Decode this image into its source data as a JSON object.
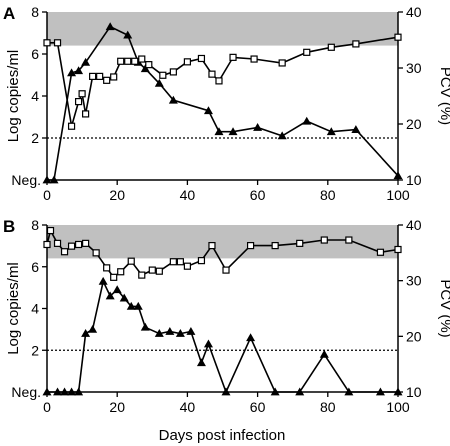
{
  "figure": {
    "shared_xlabel": "Days post infection"
  },
  "chart_data": [
    {
      "type": "line",
      "panel_label": "A",
      "xlim": [
        0,
        100
      ],
      "xticks": [
        0,
        20,
        40,
        60,
        80,
        100
      ],
      "left_axis": {
        "label": "Log copies/ml",
        "ylim": [
          0,
          8
        ],
        "ticks": [
          2,
          4,
          6,
          8
        ],
        "bottom_label": "Neg."
      },
      "right_axis": {
        "label": "PCV (%)",
        "ylim": [
          10,
          40
        ],
        "ticks": [
          10,
          20,
          30,
          40
        ]
      },
      "shaded_band": {
        "axis": "right",
        "range": [
          34,
          40
        ],
        "color": "#c0c0c0"
      },
      "threshold_line": {
        "axis": "left",
        "value": 2,
        "style": "dotted"
      },
      "series": [
        {
          "marker": "filled-triangle",
          "axis": "left",
          "x": [
            0,
            2,
            7,
            9,
            11,
            18,
            23,
            26,
            28,
            32,
            36,
            46,
            49,
            53,
            60,
            67,
            74,
            81,
            88,
            100
          ],
          "y": [
            0,
            0,
            5.1,
            5.2,
            5.6,
            7.3,
            6.9,
            5.6,
            5.3,
            4.6,
            3.8,
            3.3,
            2.3,
            2.3,
            2.5,
            2.1,
            2.8,
            2.3,
            2.4,
            0.2
          ]
        },
        {
          "marker": "open-square",
          "axis": "right",
          "x": [
            0,
            3,
            7,
            9,
            10,
            11,
            13,
            15,
            17,
            19,
            21,
            23,
            25,
            27,
            29,
            33,
            36,
            40,
            44,
            47,
            49,
            53,
            59,
            67,
            74,
            81,
            88,
            100
          ],
          "y": [
            34.5,
            34.5,
            19.6,
            24,
            25.4,
            21.8,
            28.5,
            28.5,
            27.8,
            28.4,
            31.2,
            31.2,
            31.2,
            31.6,
            30.6,
            28.7,
            29.3,
            31.1,
            31.7,
            28.9,
            27.7,
            31.9,
            31.6,
            30.9,
            32.8,
            33.7,
            34.3,
            35.5
          ]
        }
      ]
    },
    {
      "type": "line",
      "panel_label": "B",
      "xlim": [
        0,
        100
      ],
      "xticks": [
        0,
        20,
        40,
        60,
        80,
        100
      ],
      "left_axis": {
        "label": "Log copies/ml",
        "ylim": [
          0,
          8
        ],
        "ticks": [
          2,
          4,
          6,
          8
        ],
        "bottom_label": "Neg."
      },
      "right_axis": {
        "label": "PCV (%)",
        "ylim": [
          10,
          40
        ],
        "ticks": [
          10,
          20,
          30,
          40
        ]
      },
      "shaded_band": {
        "axis": "right",
        "range": [
          34,
          40
        ],
        "color": "#c0c0c0"
      },
      "threshold_line": {
        "axis": "left",
        "value": 2,
        "style": "dotted"
      },
      "series": [
        {
          "marker": "filled-triangle",
          "axis": "left",
          "x": [
            0,
            3,
            5,
            7,
            9,
            11,
            13,
            16,
            18,
            20,
            22,
            24,
            26,
            28,
            32,
            35,
            38,
            41,
            44,
            46,
            51,
            58,
            65,
            72,
            79,
            86,
            95,
            100
          ],
          "y": [
            0,
            0,
            0,
            0,
            0,
            2.8,
            3.0,
            5.3,
            4.6,
            4.9,
            4.5,
            4.1,
            4.1,
            3.1,
            2.8,
            2.9,
            2.8,
            2.9,
            1.4,
            2.3,
            0,
            2.6,
            0,
            0,
            1.8,
            0,
            0,
            0
          ]
        },
        {
          "marker": "open-square",
          "axis": "right",
          "x": [
            0,
            1,
            3,
            5,
            7,
            9,
            11,
            14,
            17,
            19,
            21,
            24,
            27,
            30,
            32,
            36,
            38,
            40,
            44,
            47,
            51,
            58,
            65,
            72,
            79,
            86,
            95,
            100
          ],
          "y": [
            36.5,
            39,
            36.7,
            35.2,
            36.2,
            36.5,
            36.7,
            35,
            32.3,
            30.6,
            31.6,
            33.5,
            31,
            31.9,
            31.7,
            33.4,
            33.4,
            32.6,
            33.6,
            36.3,
            31.9,
            36.3,
            36.3,
            36.7,
            37.3,
            37.3,
            35.1,
            35.6
          ]
        }
      ]
    }
  ]
}
